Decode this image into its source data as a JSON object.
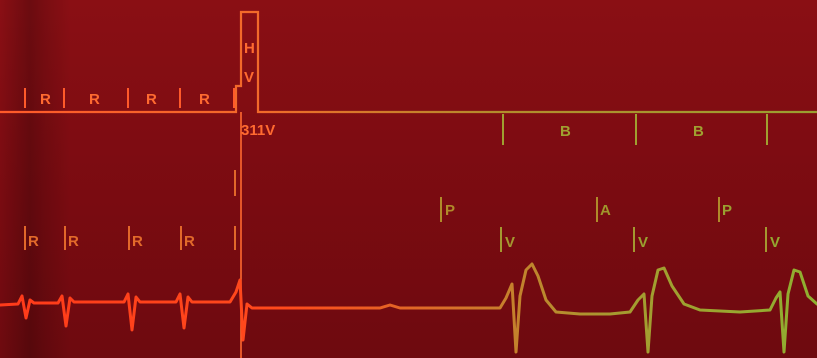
{
  "colors": {
    "background": "#7d0c12",
    "channel_red": "#ff5a2a",
    "channel_orange": "#f07a2a",
    "channel_olive": "#9aa030",
    "ecg_start": "#ff3a1a",
    "ecg_end": "#8fb030"
  },
  "top_channel": {
    "pre_labels": [
      "R",
      "R",
      "R",
      "R"
    ],
    "shock_label_h": "H",
    "shock_label_v": "V",
    "shock_voltage": "311V",
    "post_labels": [
      "B",
      "B"
    ]
  },
  "marker_channel": {
    "pre_labels": [
      "R",
      "R",
      "R",
      "R"
    ],
    "upper_labels": [
      "P",
      "A",
      "P"
    ],
    "v_labels": [
      "V",
      "V",
      "V"
    ]
  }
}
